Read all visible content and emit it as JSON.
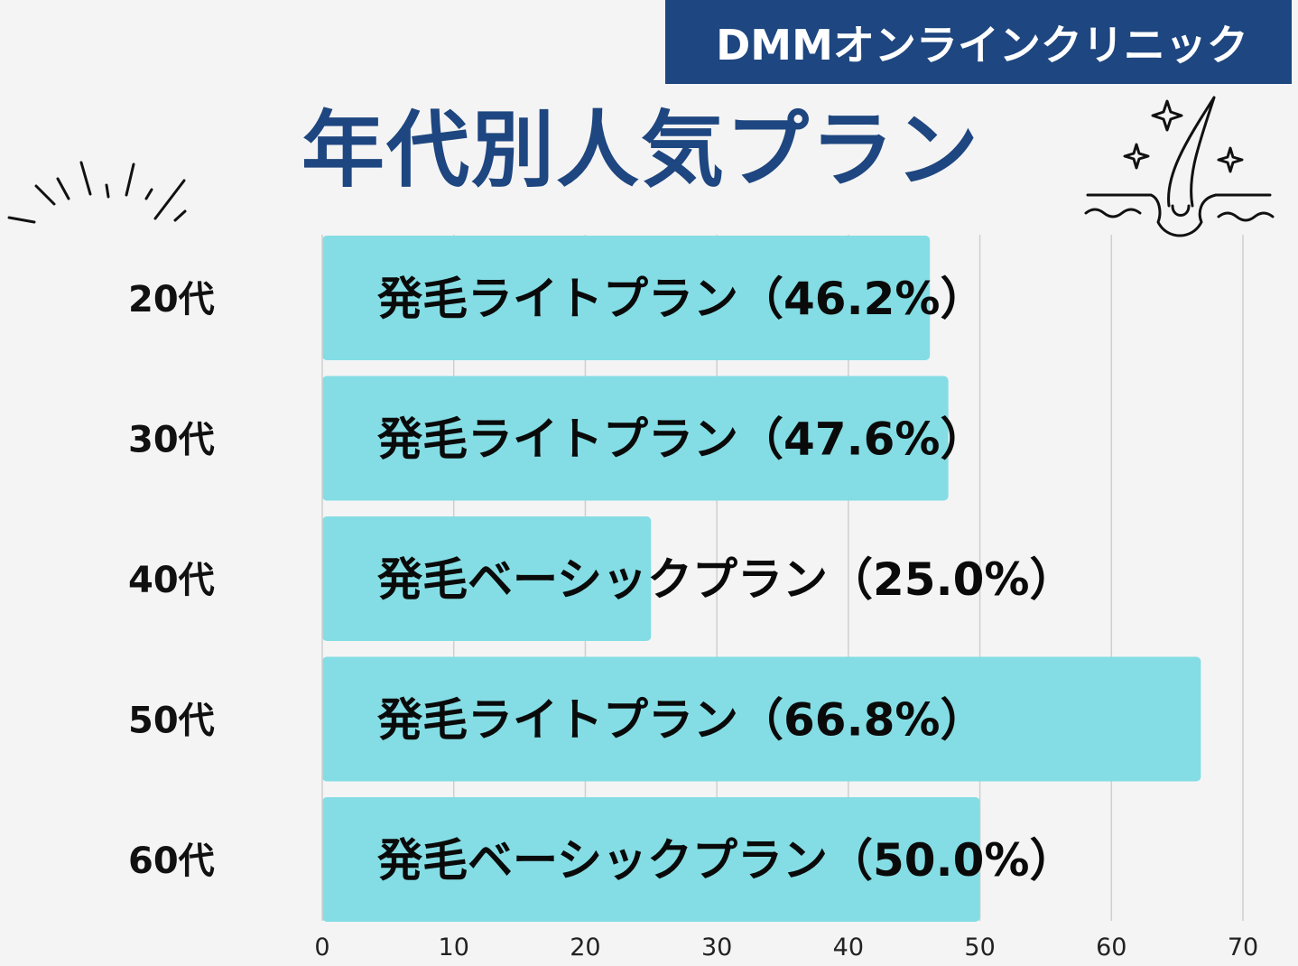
{
  "brand": "DMMオンラインクリニック",
  "colors": {
    "brand_bg": "#1e4680",
    "title": "#1e4680",
    "bar": "#84dde4",
    "grid": "#cfcfcf",
    "background": "#f4f4f4"
  },
  "icons": [
    "burst-lines-icon",
    "hair-follicle-sparkle-icon"
  ],
  "chart_data": {
    "type": "bar",
    "orientation": "horizontal",
    "title": "年代別人気プラン",
    "xlabel": "",
    "ylabel": "",
    "categories": [
      "20代",
      "30代",
      "40代",
      "50代",
      "60代"
    ],
    "values": [
      46.2,
      47.6,
      25.0,
      66.8,
      50.0
    ],
    "bar_labels": [
      "発毛ライトプラン（46.2%）",
      "発毛ライトプラン（47.6%）",
      "発毛ベーシックプラン（25.0%）",
      "発毛ライトプラン（66.8%）",
      "発毛ベーシックプラン（50.0%）"
    ],
    "xlim": [
      0,
      70
    ],
    "xticks": [
      "0",
      "10",
      "20",
      "30",
      "40",
      "50",
      "60",
      "70"
    ],
    "grid": true,
    "legend": "none"
  }
}
